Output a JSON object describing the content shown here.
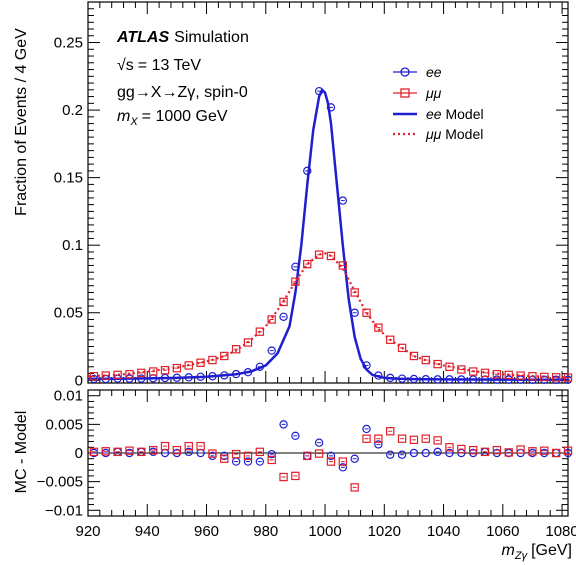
{
  "chart_data": [
    {
      "type": "scatter",
      "role": "main",
      "ylabel": "Fraction of Events / 4 GeV",
      "xlim": [
        920,
        1082
      ],
      "ylim": [
        -0.002,
        0.28
      ],
      "x_ticks": [
        920,
        940,
        960,
        980,
        1000,
        1020,
        1040,
        1060,
        1080
      ],
      "x_tick_labels": [
        "920",
        "940",
        "960",
        "980",
        "1000",
        "1020",
        "1040",
        "1060",
        "1080"
      ],
      "y_ticks": [
        0,
        0.05,
        0.1,
        0.15,
        0.2,
        0.25
      ],
      "y_tick_labels": [
        "0",
        "0.05",
        "0.1",
        "0.15",
        "0.2",
        "0.25"
      ],
      "annotations": {
        "atlas": "ATLAS",
        "simulation": "Simulation",
        "energy_sqrt": "√s",
        "energy_value": "= 13 TeV",
        "process": "gg→X→Zγ, spin-0",
        "mass_symbol": "m",
        "mass_sub": "X",
        "mass_value": "= 1000 GeV"
      },
      "legend": {
        "position": "top-right",
        "entries": [
          {
            "label": "ee",
            "style": "open-circle",
            "color": "#1f1fd0"
          },
          {
            "label": "μμ",
            "style": "open-square",
            "color": "#e0202a"
          },
          {
            "label_italic": "ee",
            "label_rest": " Model",
            "style": "solid-line",
            "color": "#1f1fd0"
          },
          {
            "label_italic": "μμ",
            "label_rest": " Model",
            "style": "dotted-line",
            "color": "#e0202a"
          }
        ]
      },
      "series": [
        {
          "name": "ee",
          "color": "#1f1fd0",
          "marker": "circle",
          "x": [
            922,
            926,
            930,
            934,
            938,
            942,
            946,
            950,
            954,
            958,
            962,
            966,
            970,
            974,
            978,
            982,
            986,
            990,
            994,
            998,
            1002,
            1006,
            1010,
            1014,
            1018,
            1022,
            1026,
            1030,
            1034,
            1038,
            1042,
            1046,
            1050,
            1054,
            1058,
            1062,
            1066,
            1070,
            1074,
            1078,
            1082
          ],
          "y": [
            0.001,
            0.001,
            0.0012,
            0.0012,
            0.0013,
            0.0015,
            0.0017,
            0.0019,
            0.0022,
            0.0026,
            0.003,
            0.0036,
            0.0046,
            0.006,
            0.01,
            0.022,
            0.047,
            0.084,
            0.155,
            0.214,
            0.202,
            0.133,
            0.05,
            0.011,
            0.0035,
            0.0018,
            0.0012,
            0.001,
            0.0008,
            0.0007,
            0.0007,
            0.0006,
            0.0006,
            0.0005,
            0.0005,
            0.0005,
            0.0005,
            0.0004,
            0.0004,
            0.0004,
            0.0004
          ]
        },
        {
          "name": "μμ",
          "color": "#e0202a",
          "marker": "square",
          "x": [
            922,
            926,
            930,
            934,
            938,
            942,
            946,
            950,
            954,
            958,
            962,
            966,
            970,
            974,
            978,
            982,
            986,
            990,
            994,
            998,
            1002,
            1006,
            1010,
            1014,
            1018,
            1022,
            1026,
            1030,
            1034,
            1038,
            1042,
            1046,
            1050,
            1054,
            1058,
            1062,
            1066,
            1070,
            1074,
            1078,
            1082
          ],
          "y": [
            0.003,
            0.0035,
            0.004,
            0.0045,
            0.0055,
            0.0065,
            0.0075,
            0.009,
            0.011,
            0.013,
            0.015,
            0.018,
            0.023,
            0.028,
            0.036,
            0.045,
            0.058,
            0.073,
            0.086,
            0.093,
            0.092,
            0.085,
            0.065,
            0.05,
            0.039,
            0.03,
            0.024,
            0.018,
            0.015,
            0.012,
            0.01,
            0.008,
            0.0065,
            0.0055,
            0.0045,
            0.004,
            0.0035,
            0.003,
            0.0025,
            0.0022,
            0.002
          ]
        }
      ],
      "models": [
        {
          "name": "ee Model",
          "color": "#1f1fd0",
          "style": "solid",
          "x": [
            920,
            930,
            940,
            950,
            960,
            970,
            975,
            980,
            984,
            988,
            990,
            992,
            994,
            996,
            998,
            999,
            1000,
            1001,
            1002,
            1004,
            1006,
            1008,
            1010,
            1012,
            1014,
            1016,
            1020,
            1025,
            1030,
            1040,
            1050,
            1060,
            1070,
            1082
          ],
          "y": [
            0.001,
            0.0011,
            0.0014,
            0.0018,
            0.0026,
            0.0045,
            0.0065,
            0.011,
            0.02,
            0.04,
            0.065,
            0.1,
            0.145,
            0.185,
            0.21,
            0.215,
            0.213,
            0.205,
            0.19,
            0.145,
            0.1,
            0.06,
            0.032,
            0.016,
            0.008,
            0.004,
            0.0018,
            0.0011,
            0.0009,
            0.0007,
            0.0006,
            0.0005,
            0.0004,
            0.0004
          ]
        },
        {
          "name": "μμ Model",
          "color": "#e0202a",
          "style": "dotted",
          "x": [
            920,
            930,
            940,
            950,
            960,
            965,
            970,
            975,
            980,
            985,
            990,
            994,
            998,
            1000,
            1002,
            1006,
            1010,
            1014,
            1018,
            1022,
            1026,
            1030,
            1035,
            1040,
            1050,
            1060,
            1070,
            1082
          ],
          "y": [
            0.003,
            0.004,
            0.0065,
            0.0095,
            0.014,
            0.017,
            0.022,
            0.03,
            0.04,
            0.055,
            0.073,
            0.086,
            0.093,
            0.094,
            0.092,
            0.083,
            0.066,
            0.05,
            0.038,
            0.03,
            0.024,
            0.018,
            0.014,
            0.011,
            0.0068,
            0.0045,
            0.003,
            0.002
          ]
        }
      ]
    },
    {
      "type": "scatter",
      "role": "ratio",
      "xlabel_main": "m",
      "xlabel_sub": "Zγ",
      "xlabel_unit": "[GeV]",
      "ylabel": "MC - Model",
      "xlim": [
        920,
        1082
      ],
      "ylim": [
        -0.011,
        0.011
      ],
      "y_ticks": [
        -0.01,
        -0.005,
        0,
        0.005,
        0.01
      ],
      "y_tick_labels": [
        "−0.01",
        "−0.005",
        "0",
        "0.005",
        "0.01"
      ],
      "series": [
        {
          "name": "ee",
          "color": "#1f1fd0",
          "marker": "circle",
          "x": [
            922,
            926,
            930,
            934,
            938,
            942,
            946,
            950,
            954,
            958,
            962,
            966,
            970,
            974,
            978,
            982,
            986,
            990,
            994,
            998,
            1002,
            1006,
            1010,
            1014,
            1018,
            1022,
            1026,
            1030,
            1034,
            1038,
            1042,
            1046,
            1050,
            1054,
            1058,
            1062,
            1066,
            1070,
            1074,
            1078,
            1082
          ],
          "y": [
            0,
            0,
            0.0002,
            0,
            0.0002,
            0.0002,
            0,
            0,
            0.0002,
            0,
            -0.0005,
            -0.0005,
            -0.0015,
            -0.0015,
            -0.0015,
            -0.0002,
            0.005,
            0.003,
            -0.0005,
            0.0018,
            -0.0005,
            -0.0025,
            -0.001,
            0.0042,
            0.0015,
            -0.0003,
            -0.0003,
            0,
            0,
            0.0002,
            0,
            0,
            0,
            0.0002,
            0,
            0,
            0,
            0,
            0,
            0,
            0
          ]
        },
        {
          "name": "μμ",
          "color": "#e0202a",
          "marker": "square",
          "x": [
            922,
            926,
            930,
            934,
            938,
            942,
            946,
            950,
            954,
            958,
            962,
            966,
            970,
            974,
            978,
            982,
            986,
            990,
            994,
            998,
            1002,
            1006,
            1010,
            1014,
            1018,
            1022,
            1026,
            1030,
            1034,
            1038,
            1042,
            1046,
            1050,
            1054,
            1058,
            1062,
            1066,
            1070,
            1074,
            1078,
            1082
          ],
          "y": [
            0.0002,
            0.0003,
            0.0002,
            0.0004,
            0.0002,
            0.0005,
            0.0012,
            0.0005,
            0.0012,
            0.0012,
            -0.0001,
            -0.001,
            -0.0002,
            -0.0005,
            0.0002,
            -0.0012,
            -0.0042,
            -0.004,
            -0.0005,
            -0.0001,
            -0.0015,
            -0.0015,
            -0.006,
            0.0025,
            0.0025,
            0.0038,
            0.0025,
            0.0023,
            0.0025,
            0.0022,
            0.001,
            0.0007,
            0.0005,
            0.0002,
            0.0005,
            0.0001,
            0.0006,
            0.0003,
            0.0004,
            0,
            0.0004
          ]
        }
      ]
    }
  ]
}
